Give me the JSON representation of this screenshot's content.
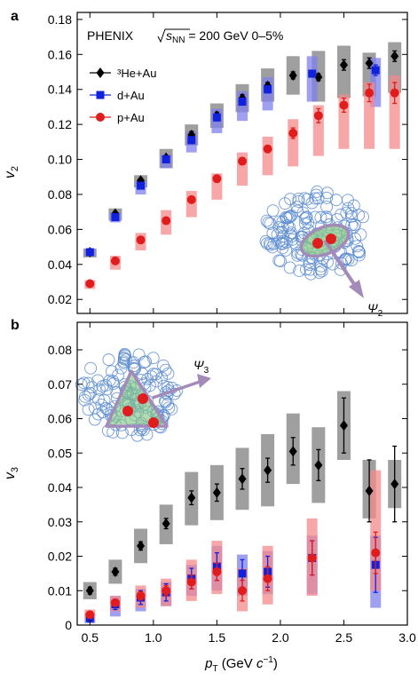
{
  "header": {
    "experiment": "PHENIX",
    "energy_symbol": "s",
    "energy_sub": "NN",
    "energy_rest": " = 200 GeV 0–5%"
  },
  "colors": {
    "he": "#000000",
    "d": "#1122dd",
    "p": "#e01c1c",
    "he_box": "#7f7f7f",
    "d_box": "#8080ee",
    "p_box": "#f48a8a",
    "nucleon": "#5b8bd0",
    "glow": "#88c888",
    "plane": "#a48ab8"
  },
  "chart_data": [
    {
      "type": "scatter",
      "panel": "a",
      "ylabel_main": "v",
      "ylabel_sub": "2",
      "xlim": [
        0.4,
        3.0
      ],
      "ylim": [
        0.012,
        0.184
      ],
      "xticks": [],
      "yticks": [
        "0.02",
        "0.04",
        "0.06",
        "0.08",
        "0.10",
        "0.12",
        "0.14",
        "0.16",
        "0.18"
      ],
      "ytick_values": [
        0.02,
        0.04,
        0.06,
        0.08,
        0.1,
        0.12,
        0.14,
        0.16,
        0.18
      ],
      "legend": [
        "³He+Au",
        "d+Au",
        "p+Au"
      ],
      "plane_label": "Ψ",
      "plane_sub": "2",
      "series": [
        {
          "name": "³He+Au",
          "key": "he",
          "marker": "diamond",
          "x": [
            0.5,
            0.7,
            0.9,
            1.1,
            1.3,
            1.5,
            1.7,
            1.9,
            2.1,
            2.3,
            2.5,
            2.7,
            2.9
          ],
          "y": [
            0.047,
            0.069,
            0.088,
            0.101,
            0.114,
            0.125,
            0.135,
            0.142,
            0.148,
            0.147,
            0.154,
            0.155,
            0.159
          ],
          "err": [
            0.001,
            0.001,
            0.001,
            0.001,
            0.002,
            0.002,
            0.002,
            0.002,
            0.002,
            0.002,
            0.003,
            0.003,
            0.003
          ],
          "sys_lo": [
            0.044,
            0.065,
            0.084,
            0.095,
            0.108,
            0.118,
            0.127,
            0.133,
            0.137,
            0.133,
            0.135,
            0.136,
            0.138
          ],
          "sys_hi": [
            0.049,
            0.072,
            0.091,
            0.106,
            0.12,
            0.132,
            0.143,
            0.152,
            0.159,
            0.162,
            0.165,
            0.161,
            0.167
          ]
        },
        {
          "name": "d+Au",
          "key": "d",
          "marker": "square",
          "x": [
            0.5,
            0.7,
            0.9,
            1.1,
            1.3,
            1.5,
            1.7,
            1.9,
            2.25,
            2.75
          ],
          "y": [
            0.047,
            0.067,
            0.085,
            0.1,
            0.111,
            0.124,
            0.133,
            0.14,
            0.149,
            0.151
          ],
          "err": [
            0.001,
            0.001,
            0.001,
            0.001,
            0.002,
            0.002,
            0.002,
            0.002,
            0.002,
            0.003
          ],
          "sys_lo": [
            0.045,
            0.064,
            0.08,
            0.095,
            0.104,
            0.115,
            0.122,
            0.128,
            0.133,
            0.13
          ],
          "sys_hi": [
            0.049,
            0.07,
            0.088,
            0.103,
            0.116,
            0.129,
            0.139,
            0.147,
            0.159,
            0.158
          ]
        },
        {
          "name": "p+Au",
          "key": "p",
          "marker": "circle",
          "x": [
            0.5,
            0.7,
            0.9,
            1.1,
            1.3,
            1.5,
            1.7,
            1.9,
            2.1,
            2.3,
            2.5,
            2.7,
            2.9
          ],
          "y": [
            0.029,
            0.042,
            0.054,
            0.065,
            0.077,
            0.089,
            0.099,
            0.106,
            0.115,
            0.125,
            0.131,
            0.138,
            0.138
          ],
          "err": [
            0.001,
            0.001,
            0.001,
            0.001,
            0.001,
            0.002,
            0.002,
            0.002,
            0.003,
            0.004,
            0.004,
            0.005,
            0.006
          ],
          "sys_lo": [
            0.026,
            0.037,
            0.048,
            0.057,
            0.067,
            0.077,
            0.085,
            0.091,
            0.096,
            0.102,
            0.106,
            0.106,
            0.106
          ],
          "sys_hi": [
            0.031,
            0.045,
            0.058,
            0.071,
            0.082,
            0.092,
            0.104,
            0.113,
            0.123,
            0.131,
            0.137,
            0.144,
            0.148
          ]
        }
      ]
    },
    {
      "type": "scatter",
      "panel": "b",
      "ylabel_main": "v",
      "ylabel_sub": "3",
      "xlabel_main": "p",
      "xlabel_sub": "T",
      "xlabel_unit": " (GeV ",
      "xlabel_unit_c": "c",
      "xlabel_unit_exp": "−1",
      "xlabel_unit_close": ")",
      "xlim": [
        0.4,
        3.0
      ],
      "ylim": [
        0.0,
        0.088
      ],
      "xticks": [
        "0.5",
        "1.0",
        "1.5",
        "2.0",
        "2.5",
        "3.0"
      ],
      "xtick_values": [
        0.5,
        1.0,
        1.5,
        2.0,
        2.5,
        3.0
      ],
      "yticks": [
        "0",
        "0.01",
        "0.02",
        "0.03",
        "0.04",
        "0.05",
        "0.06",
        "0.07",
        "0.08"
      ],
      "ytick_values": [
        0,
        0.01,
        0.02,
        0.03,
        0.04,
        0.05,
        0.06,
        0.07,
        0.08
      ],
      "plane_label": "Ψ",
      "plane_sub": "3",
      "series": [
        {
          "name": "³He+Au",
          "key": "he",
          "marker": "diamond",
          "x": [
            0.5,
            0.7,
            0.9,
            1.1,
            1.3,
            1.5,
            1.7,
            1.9,
            2.1,
            2.3,
            2.5,
            2.7,
            2.9
          ],
          "y": [
            0.01,
            0.0155,
            0.023,
            0.0295,
            0.037,
            0.0385,
            0.0425,
            0.045,
            0.0505,
            0.0465,
            0.058,
            0.039,
            0.041
          ],
          "err": [
            0.001,
            0.001,
            0.0012,
            0.0015,
            0.002,
            0.0025,
            0.003,
            0.0035,
            0.004,
            0.0045,
            0.008,
            0.009,
            0.011
          ],
          "sys_lo": [
            0.0075,
            0.012,
            0.018,
            0.0235,
            0.029,
            0.0305,
            0.0335,
            0.0345,
            0.041,
            0.0355,
            0.048,
            0.031,
            0.034
          ],
          "sys_hi": [
            0.0125,
            0.019,
            0.028,
            0.035,
            0.0445,
            0.0465,
            0.0515,
            0.0555,
            0.0615,
            0.0575,
            0.068,
            0.048,
            0.048
          ]
        },
        {
          "name": "d+Au",
          "key": "d",
          "marker": "square",
          "x": [
            0.5,
            0.7,
            0.9,
            1.1,
            1.3,
            1.5,
            1.7,
            1.9,
            2.25,
            2.75
          ],
          "y": [
            0.002,
            0.006,
            0.008,
            0.0095,
            0.0135,
            0.017,
            0.015,
            0.0155,
            0.0195,
            0.0175
          ],
          "err": [
            0.001,
            0.0015,
            0.002,
            0.0025,
            0.003,
            0.004,
            0.004,
            0.0045,
            0.005,
            0.008
          ],
          "sys_lo": [
            0.0005,
            0.0025,
            0.004,
            0.0055,
            0.0085,
            0.01,
            0.0085,
            0.009,
            0.009,
            0.005
          ],
          "sys_hi": [
            0.0035,
            0.0085,
            0.0105,
            0.0125,
            0.0175,
            0.023,
            0.0205,
            0.0215,
            0.026,
            0.026
          ]
        },
        {
          "name": "p+Au",
          "key": "p",
          "marker": "circle",
          "x": [
            0.5,
            0.7,
            0.9,
            1.1,
            1.3,
            1.5,
            1.7,
            1.9,
            2.25,
            2.75
          ],
          "y": [
            0.003,
            0.0065,
            0.0085,
            0.01,
            0.0125,
            0.0155,
            0.01,
            0.0135,
            0.0195,
            0.021
          ],
          "err": [
            0.0005,
            0.001,
            0.0012,
            0.0015,
            0.002,
            0.0025,
            0.003,
            0.0035,
            0.005,
            0.006
          ],
          "sys_lo": [
            0.0015,
            0.004,
            0.005,
            0.0055,
            0.007,
            0.009,
            0.004,
            0.006,
            0.0085,
            0.01
          ],
          "sys_hi": [
            0.0045,
            0.0085,
            0.0115,
            0.0135,
            0.019,
            0.0245,
            0.0165,
            0.023,
            0.031,
            0.045
          ]
        }
      ]
    }
  ]
}
